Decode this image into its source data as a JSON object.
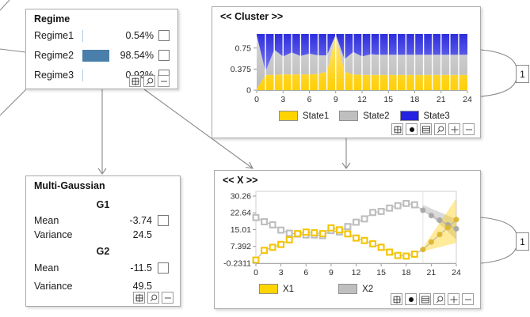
{
  "panels": {
    "regime": {
      "title": "Regime",
      "rows": [
        {
          "label": "Regime1",
          "pct": "0.54%",
          "value": 0.0054
        },
        {
          "label": "Regime2",
          "pct": "98.54%",
          "value": 0.9854
        },
        {
          "label": "Regime3",
          "pct": "0.92%",
          "value": 0.0092
        }
      ],
      "bar_color": "#4A7FAB",
      "bar_color_small": "#AECBE0",
      "toolbar": [
        "grid",
        "zoom",
        "minus"
      ]
    },
    "cluster": {
      "title": "<< Cluster >>",
      "legend": [
        {
          "label": "State1",
          "color": "#FFD400"
        },
        {
          "label": "State2",
          "color": "#BFBFBF"
        },
        {
          "label": "State3",
          "color": "#2323E1"
        }
      ],
      "toolbar": [
        "grid",
        "dot",
        "bars",
        "zoom",
        "plus",
        "minus"
      ],
      "link_count": "1"
    },
    "multi_gaussian": {
      "title": "Multi-Gaussian",
      "groups": [
        {
          "name": "G1",
          "rows": [
            {
              "label": "Mean",
              "value": "-3.74",
              "checkbox": true
            },
            {
              "label": "Variance",
              "value": "24.5",
              "checkbox": false
            }
          ]
        },
        {
          "name": "G2",
          "rows": [
            {
              "label": "Mean",
              "value": "-11.5",
              "checkbox": true
            },
            {
              "label": "Variance",
              "value": "49.5",
              "checkbox": false
            }
          ]
        }
      ],
      "toolbar": [
        "grid",
        "zoom",
        "minus"
      ]
    },
    "x": {
      "title": "<< X >>",
      "legend": [
        {
          "label": "X1",
          "color": "#FFD400"
        },
        {
          "label": "X2",
          "color": "#BFBFBF"
        }
      ],
      "toolbar": [
        "grid",
        "dot",
        "bars",
        "zoom",
        "plus",
        "minus"
      ],
      "link_count": "1"
    }
  },
  "chart_data": [
    {
      "type": "area",
      "stacked": true,
      "title": "<< Cluster >>",
      "x": [
        0,
        1,
        2,
        3,
        4,
        5,
        6,
        7,
        8,
        9,
        10,
        11,
        12,
        13,
        14,
        15,
        16,
        17,
        18,
        19,
        20,
        21,
        22,
        23,
        24
      ],
      "series": [
        {
          "name": "State1",
          "color": "#FFD400",
          "values": [
            0.02,
            0.27,
            0.27,
            0.28,
            0.28,
            0.28,
            0.28,
            0.29,
            0.33,
            0.97,
            0.33,
            0.28,
            0.27,
            0.27,
            0.27,
            0.27,
            0.27,
            0.27,
            0.27,
            0.27,
            0.27,
            0.27,
            0.27,
            0.27,
            0.27
          ]
        },
        {
          "name": "State2",
          "color": "#BFBFBF",
          "values": [
            0.96,
            0.06,
            0.45,
            0.32,
            0.39,
            0.33,
            0.37,
            0.33,
            0.29,
            0.02,
            0.22,
            0.4,
            0.33,
            0.37,
            0.36,
            0.36,
            0.36,
            0.36,
            0.36,
            0.36,
            0.36,
            0.36,
            0.36,
            0.36,
            0.36
          ]
        },
        {
          "name": "State3",
          "color": "#2323E1",
          "values": [
            0.02,
            0.67,
            0.28,
            0.4,
            0.33,
            0.39,
            0.35,
            0.38,
            0.38,
            0.01,
            0.45,
            0.32,
            0.4,
            0.36,
            0.37,
            0.37,
            0.37,
            0.37,
            0.37,
            0.37,
            0.37,
            0.37,
            0.37,
            0.37,
            0.37
          ]
        }
      ],
      "xticks": [
        0,
        3,
        6,
        9,
        12,
        15,
        18,
        21,
        24
      ],
      "ytick_labels": [
        "0",
        "0.375",
        "0.75"
      ],
      "ytick_values": [
        0,
        0.375,
        0.75
      ],
      "ylim": [
        0,
        1
      ],
      "grid": false,
      "legend_position": "bottom"
    },
    {
      "type": "line",
      "title": "<< X >>",
      "x": [
        0,
        1,
        2,
        3,
        4,
        5,
        6,
        7,
        8,
        9,
        10,
        11,
        12,
        13,
        14,
        15,
        16,
        17,
        18,
        19,
        20,
        21,
        22,
        23,
        24
      ],
      "series": [
        {
          "name": "X2",
          "color": "#BDBDBD",
          "marker": "square",
          "forecast_color": "#A6A6A6",
          "values": [
            20.5,
            18.6,
            17.2,
            14.8,
            13.4,
            13.0,
            12.6,
            12.6,
            12.3,
            14.6,
            14.0,
            16.4,
            18.4,
            19.9,
            22.8,
            23.3,
            24.8,
            25.9,
            26.9,
            26.3,
            23.8,
            21.4,
            19.3,
            17.2,
            15.4
          ]
        },
        {
          "name": "X1",
          "color": "#F5C400",
          "marker": "square",
          "forecast_color": "#DDB52F",
          "values": [
            1.2,
            5.6,
            7.0,
            8.3,
            10.4,
            13.2,
            13.9,
            13.6,
            13.2,
            15.8,
            14.9,
            13.1,
            11.2,
            10.1,
            8.6,
            7.0,
            4.8,
            3.3,
            3.0,
            3.9,
            6.0,
            9.4,
            12.8,
            16.0,
            19.6
          ]
        }
      ],
      "forecast_start_x": 20,
      "forecast_bands": [
        {
          "series": "X2",
          "fill": "rgba(150,150,150,0.35)",
          "x": [
            20,
            24
          ],
          "lower": [
            24.6,
            10.5
          ],
          "upper": [
            26.2,
            19.8
          ]
        },
        {
          "series": "X1",
          "fill": "rgba(255,205,0,0.40)",
          "x": [
            20,
            24
          ],
          "lower": [
            5.2,
            9.0
          ],
          "upper": [
            6.8,
            29.3
          ]
        }
      ],
      "xticks": [
        0,
        3,
        6,
        9,
        12,
        15,
        18,
        21,
        24
      ],
      "ytick_labels": [
        "30.26",
        "22.64",
        "15.01",
        "7.392",
        "-0.2311"
      ],
      "ytick_values": [
        30.26,
        22.6425,
        15.015,
        7.392,
        -0.2311
      ],
      "ylim": [
        -0.2311,
        30.26
      ],
      "grid": false,
      "legend_position": "bottom"
    }
  ]
}
